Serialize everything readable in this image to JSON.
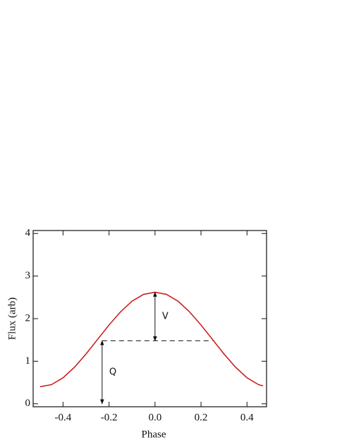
{
  "chart_data": {
    "type": "line",
    "x_label": "Phase",
    "y_label": "Flux (arb)",
    "x": [
      -0.5,
      -0.45,
      -0.4,
      -0.35,
      -0.3,
      -0.25,
      -0.2,
      -0.15,
      -0.1,
      -0.05,
      0,
      0.05,
      0.1,
      0.15,
      0.2,
      0.25,
      0.3,
      0.35,
      0.4,
      0.45,
      0.47
    ],
    "series": [
      {
        "color": "#cc1111",
        "values": [
          0.4,
          0.45,
          0.61,
          0.86,
          1.17,
          1.51,
          1.85,
          2.16,
          2.41,
          2.57,
          2.62,
          2.57,
          2.41,
          2.16,
          1.85,
          1.51,
          1.17,
          0.86,
          0.61,
          0.45,
          0.42
        ]
      }
    ],
    "xlim": [
      -0.53,
      0.485
    ],
    "ylim": [
      -0.07,
      4.07
    ],
    "xticks": [
      -0.4,
      -0.2,
      {
        "value": 0,
        "label": "0.0"
      },
      0.2,
      0.4
    ],
    "yticks": [
      0,
      1,
      2,
      3,
      4
    ],
    "reference_line": {
      "y": 1.48,
      "x": [
        -0.23,
        0.25
      ]
    },
    "annotations": [
      {
        "text": "V",
        "x": 0,
        "y": [
          1.48,
          2.62
        ]
      },
      {
        "text": "Q",
        "x": -0.23,
        "y": [
          0,
          1.48
        ]
      }
    ]
  }
}
